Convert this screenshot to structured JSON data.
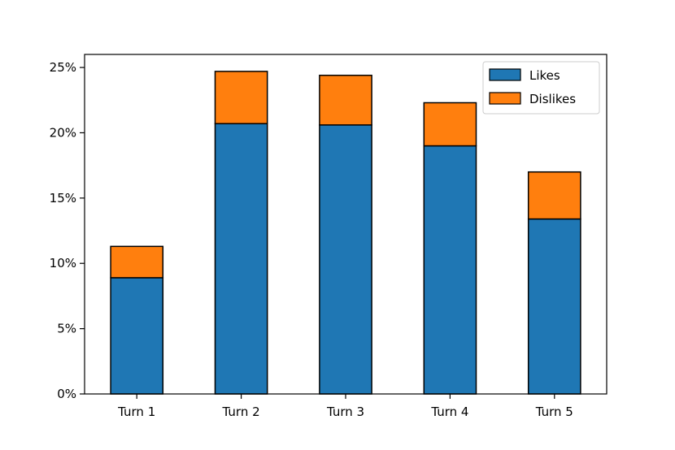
{
  "chart_data": {
    "type": "bar",
    "stacked": true,
    "categories": [
      "Turn 1",
      "Turn 2",
      "Turn 3",
      "Turn 4",
      "Turn 5"
    ],
    "series": [
      {
        "name": "Likes",
        "color": "#1f77b4",
        "values": [
          8.9,
          20.7,
          20.6,
          19.0,
          13.4
        ]
      },
      {
        "name": "Dislikes",
        "color": "#ff7f0e",
        "values": [
          2.4,
          4.0,
          3.8,
          3.3,
          3.6
        ]
      }
    ],
    "ylim": [
      0,
      26
    ],
    "yticks": [
      0,
      5,
      10,
      15,
      20,
      25
    ],
    "ytick_format": "%",
    "title": "",
    "xlabel": "",
    "ylabel": "",
    "legend_position": "top-right",
    "grid": false
  }
}
